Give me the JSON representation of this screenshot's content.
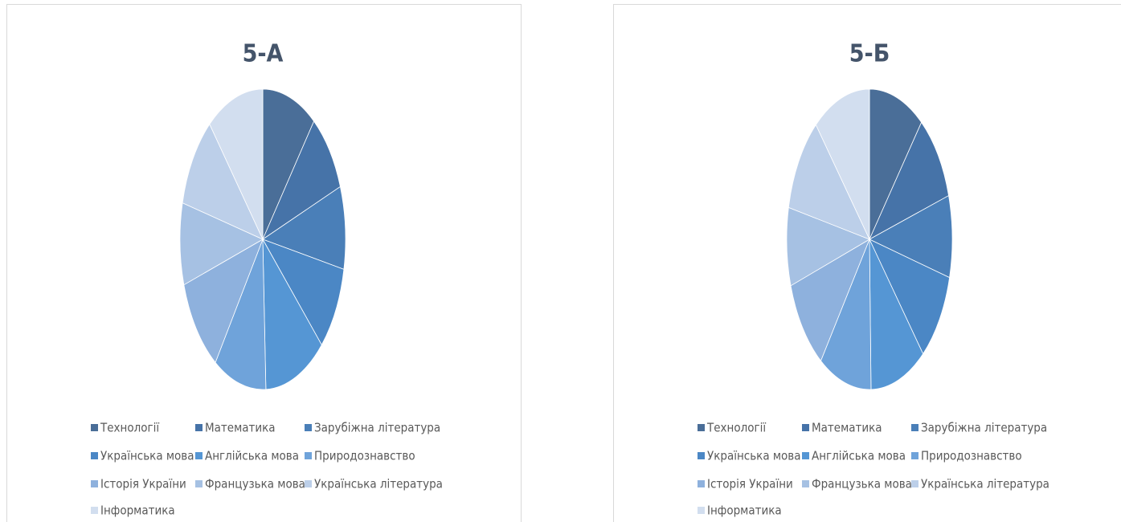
{
  "chart_data": [
    {
      "type": "pie",
      "title": "5-А",
      "categories": [
        "Технології",
        "Математика",
        "Зарубіжна література",
        "Українська мова",
        "Англійська мова",
        "Природознавство",
        "Історія України",
        "Французька мова",
        "Українська література",
        "Інформатика"
      ],
      "values": [
        10.6,
        8.7,
        8.9,
        9.2,
        12.0,
        10.3,
        10.4,
        8.8,
        10.0,
        11.1
      ],
      "colors": [
        "#4a6e98",
        "#4673a8",
        "#4a7fb8",
        "#4b87c5",
        "#5596d4",
        "#6fa3da",
        "#8eb1dd",
        "#a6c1e3",
        "#bccfe9",
        "#d2deef"
      ],
      "legend": "bottom"
    },
    {
      "type": "pie",
      "title": "5-Б",
      "categories": [
        "Технології",
        "Математика",
        "Зарубіжна література",
        "Українська мова",
        "Англійська мова",
        "Природознавство",
        "Історія України",
        "Французька мова",
        "Українська література",
        "Інформатика"
      ],
      "values": [
        10.8,
        9.5,
        8.8,
        9.7,
        10.9,
        10.3,
        10.0,
        8.4,
        10.4,
        11.2
      ],
      "colors": [
        "#4a6e98",
        "#4673a8",
        "#4a7fb8",
        "#4b87c5",
        "#5596d4",
        "#6fa3da",
        "#8eb1dd",
        "#a6c1e3",
        "#bccfe9",
        "#d2deef"
      ],
      "legend": "bottom"
    }
  ]
}
